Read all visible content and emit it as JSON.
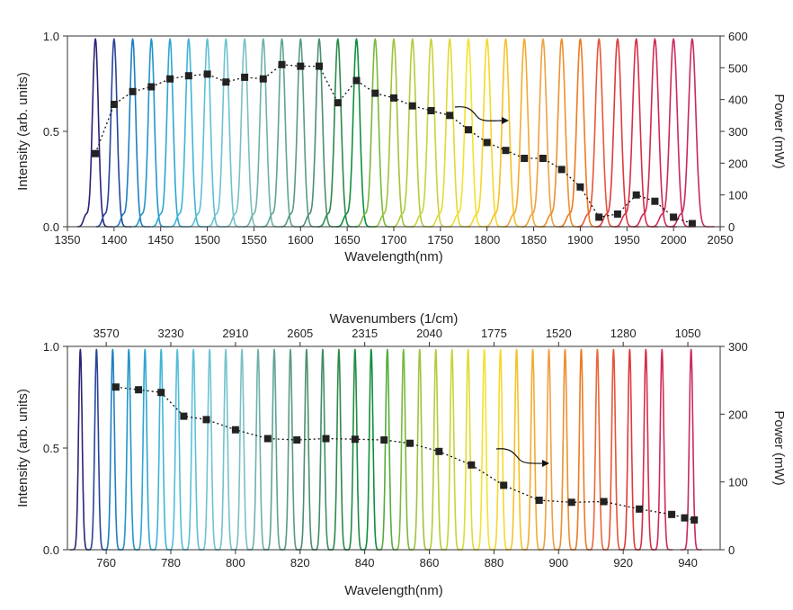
{
  "chart_data": [
    {
      "type": "line",
      "title": "",
      "xlabel": "Wavelength(nm)",
      "ylabel": "Intensity (arb. units)",
      "y2label": "Power (mW)",
      "xlim": [
        1350,
        2050
      ],
      "ylim": [
        0,
        1.0
      ],
      "y2lim": [
        0,
        600
      ],
      "x_ticks": [
        1350,
        1400,
        1450,
        1500,
        1550,
        1600,
        1650,
        1700,
        1750,
        1800,
        1850,
        1900,
        1950,
        2000,
        2050
      ],
      "y_ticks": [
        "0.0",
        "0.5",
        "1.0"
      ],
      "y2_ticks": [
        0,
        100,
        200,
        300,
        400,
        500,
        600
      ],
      "spectral_peaks_nm": [
        1380,
        1400,
        1420,
        1440,
        1460,
        1480,
        1500,
        1520,
        1540,
        1560,
        1580,
        1600,
        1620,
        1640,
        1660,
        1680,
        1700,
        1720,
        1740,
        1760,
        1780,
        1800,
        1820,
        1840,
        1860,
        1880,
        1900,
        1920,
        1940,
        1960,
        1980,
        2000,
        2020
      ],
      "peak_colors": [
        "#2a2377",
        "#28449a",
        "#1f7fc0",
        "#2296c9",
        "#2ea6d2",
        "#3fb4d6",
        "#5cc0d6",
        "#6fc3cf",
        "#7bbfc4",
        "#6fb1aa",
        "#5fa394",
        "#5a9a82",
        "#4c8f70",
        "#2c8a4a",
        "#0e8f3f",
        "#79b93d",
        "#9fc43b",
        "#b3cc3a",
        "#c8d33a",
        "#e0da33",
        "#f2e230",
        "#f7d72c",
        "#f4c22a",
        "#f1ac31",
        "#eea042",
        "#ee8f2e",
        "#ec7a22",
        "#e5563a",
        "#de3a3c",
        "#d62e48",
        "#d12a55",
        "#cc2b5c",
        "#c82a60"
      ],
      "series": [
        {
          "name": "Power",
          "axis": "right",
          "x": [
            1380,
            1400,
            1420,
            1440,
            1460,
            1480,
            1500,
            1520,
            1540,
            1560,
            1580,
            1600,
            1620,
            1640,
            1660,
            1680,
            1700,
            1720,
            1740,
            1760,
            1780,
            1800,
            1820,
            1840,
            1860,
            1880,
            1900,
            1920,
            1940,
            1960,
            1980,
            2000,
            2020
          ],
          "values": [
            230,
            385,
            425,
            440,
            465,
            475,
            480,
            455,
            470,
            465,
            510,
            505,
            505,
            390,
            460,
            420,
            405,
            380,
            365,
            350,
            305,
            265,
            240,
            215,
            215,
            180,
            125,
            30,
            40,
            100,
            80,
            30,
            10
          ]
        }
      ]
    },
    {
      "type": "line",
      "title": "",
      "xlabel": "Wavelength(nm)",
      "x2label": "Wavenumbers (1/cm)",
      "ylabel": "Intensity (arb. units)",
      "y2label": "Power (mW)",
      "xlim": [
        748,
        950
      ],
      "ylim": [
        0,
        1.0
      ],
      "y2lim": [
        0,
        300
      ],
      "x_ticks": [
        760,
        780,
        800,
        820,
        840,
        860,
        880,
        900,
        920,
        940
      ],
      "x2_ticks": [
        "3570",
        "3230",
        "2910",
        "2605",
        "2315",
        "2040",
        "1775",
        "1520",
        "1280",
        "1050"
      ],
      "y_ticks": [
        "0.0",
        "0.5",
        "1.0"
      ],
      "y2_ticks": [
        0,
        100,
        200,
        300
      ],
      "spectral_peaks_nm": [
        752,
        757,
        762,
        767,
        772,
        777,
        782,
        787,
        792,
        797,
        802,
        807,
        812,
        817,
        822,
        827,
        832,
        837,
        842,
        847,
        852,
        857,
        862,
        867,
        872,
        877,
        882,
        887,
        892,
        897,
        902,
        907,
        912,
        917,
        922,
        927,
        932,
        941
      ],
      "peak_colors": [
        "#2a2377",
        "#28449a",
        "#1f7fc0",
        "#2296c9",
        "#2ea6d2",
        "#3fb4d6",
        "#52bcd8",
        "#5cc0d6",
        "#6fc3cf",
        "#74c2cb",
        "#7bbfc4",
        "#6fb1aa",
        "#5fa394",
        "#5a9a82",
        "#4c8f70",
        "#3f8e64",
        "#2c8a4a",
        "#1f8c45",
        "#0e8f3f",
        "#56ab3e",
        "#79b93d",
        "#9fc43b",
        "#b3cc3a",
        "#c8d33a",
        "#e0da33",
        "#f2e230",
        "#f7d72c",
        "#f4c22a",
        "#f1ac31",
        "#eea042",
        "#ee8f2e",
        "#ec7a22",
        "#e8683a",
        "#e5563a",
        "#de3a3c",
        "#d62e48",
        "#d12a55",
        "#c82a60"
      ],
      "series": [
        {
          "name": "Power",
          "axis": "right",
          "x": [
            763,
            770,
            777,
            784,
            791,
            800,
            810,
            819,
            828,
            837,
            846,
            854,
            863,
            873,
            883,
            894,
            904,
            914,
            925,
            935,
            939,
            942
          ],
          "values": [
            240,
            236,
            232,
            197,
            192,
            177,
            164,
            162,
            164,
            163,
            162,
            157,
            145,
            125,
            95,
            73,
            70,
            71,
            60,
            52,
            47,
            44
          ]
        }
      ]
    }
  ]
}
